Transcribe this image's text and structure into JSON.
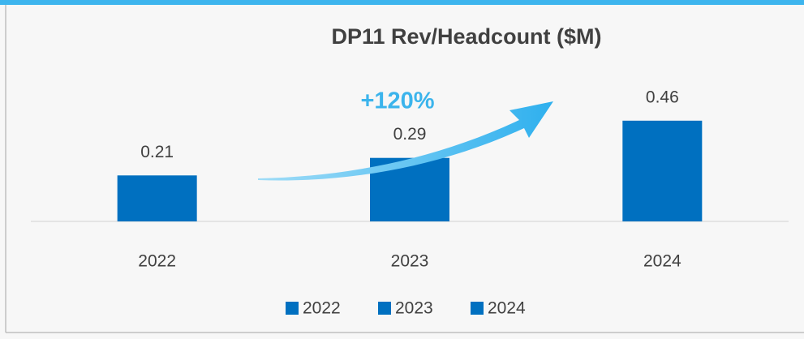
{
  "chart_data": {
    "type": "bar",
    "title": "DP11 Rev/Headcount ($M)",
    "categories": [
      "2022",
      "2023",
      "2024"
    ],
    "values": [
      0.21,
      0.29,
      0.46
    ],
    "color": "#0070c0",
    "ylim": [
      0,
      0.5
    ],
    "legend": "bottom",
    "annotation": "+120%"
  }
}
